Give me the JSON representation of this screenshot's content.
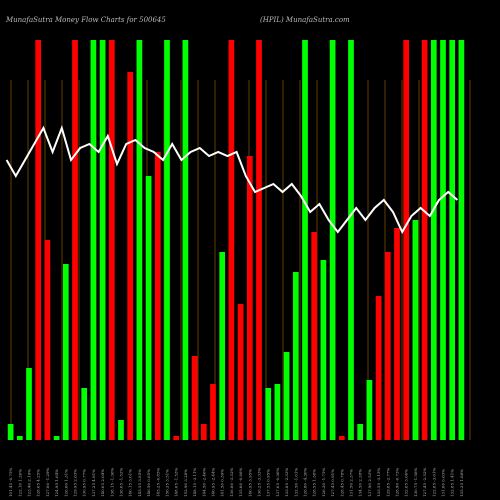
{
  "chart_data": {
    "type": "bar",
    "title_left": "MunafaSutra  Money Flow  Charts for 500645",
    "title_right": "(HPIL) MunafaSutra.com",
    "colors": {
      "up": "#00ff00",
      "down": "#ff0000",
      "line": "#ffffff",
      "grid": "#8a5a00",
      "background": "#000000"
    },
    "ylim": [
      0,
      100
    ],
    "categories": [
      "101.45 -0.75%",
      "122.10 1.26%",
      "123.40 2.19%",
      "128.65 4.25%",
      "127.00 -1.29%",
      "124.95 1.64%",
      "126.60 1.31%",
      "129.95 2.63%",
      "130.95 0.77%",
      "137.25 4.81%",
      "140.05 2.04%",
      "138.15 -1.36%",
      "136.05 -1.52%",
      "140.15 3.01%",
      "145.55 3.85%",
      "146.50 0.65%",
      "145.25 -0.85%",
      "150.35 3.51%",
      "148.05 -1.53%",
      "152.90 3.28%",
      "148.15 -3.11%",
      "144.50 -2.46%",
      "140.95 -2.44%",
      "141.50 0.39%",
      "136.80 -3.32%",
      "135.60 -0.88%",
      "140.95 3.95%",
      "136.25 -3.33%",
      "137.55 0.95%",
      "137.05 -0.36%",
      "133.85 -2.33%",
      "132.50 -1.01%",
      "126.80 -4.30%",
      "128.55 1.38%",
      "126.30 -1.75%",
      "127.45 0.91%",
      "128.45 0.78%",
      "131.50 2.37%",
      "134.50 2.28%",
      "137.90 2.53%",
      "133.55 -3.15%",
      "129.85 -2.77%",
      "128.90 -0.73%",
      "132.85 3.06%",
      "130.75 -1.58%",
      "127.45 -2.52%",
      "122.85 -3.61%",
      "131.00 6.63%",
      "132.85 1.41%",
      "135.35 1.88%"
    ],
    "bar_dir": [
      "up",
      "up",
      "up",
      "down",
      "down",
      "up",
      "up",
      "down",
      "up",
      "up",
      "up",
      "down",
      "up",
      "down",
      "up",
      "up",
      "down",
      "up",
      "down",
      "up",
      "down",
      "down",
      "down",
      "up",
      "down",
      "down",
      "down",
      "down",
      "up",
      "up",
      "up",
      "up",
      "up",
      "down",
      "up",
      "up",
      "down",
      "up",
      "up",
      "up",
      "down",
      "down",
      "down",
      "down",
      "up",
      "down",
      "up",
      "up",
      "up",
      "up"
    ],
    "values": [
      4,
      1,
      18,
      100,
      50,
      1,
      44,
      100,
      13,
      100,
      100,
      100,
      5,
      92,
      100,
      66,
      72,
      100,
      1,
      100,
      21,
      4,
      14,
      47,
      100,
      34,
      71,
      100,
      13,
      14,
      22,
      42,
      100,
      52,
      45,
      100,
      1,
      100,
      4,
      15,
      36,
      47,
      53,
      100,
      55,
      100,
      100,
      100,
      100,
      100
    ],
    "line_values": [
      70,
      66,
      70,
      74,
      78,
      72,
      78,
      70,
      73,
      74,
      72,
      76,
      69,
      74,
      75,
      73,
      72,
      70,
      74,
      70,
      72,
      73,
      71,
      72,
      71,
      72,
      66,
      62,
      63,
      64,
      62,
      64,
      61,
      57,
      59,
      55,
      52,
      55,
      58,
      55,
      58,
      60,
      57,
      52,
      56,
      58,
      56,
      60,
      62,
      60
    ],
    "grid_count": 28,
    "grid": true
  }
}
